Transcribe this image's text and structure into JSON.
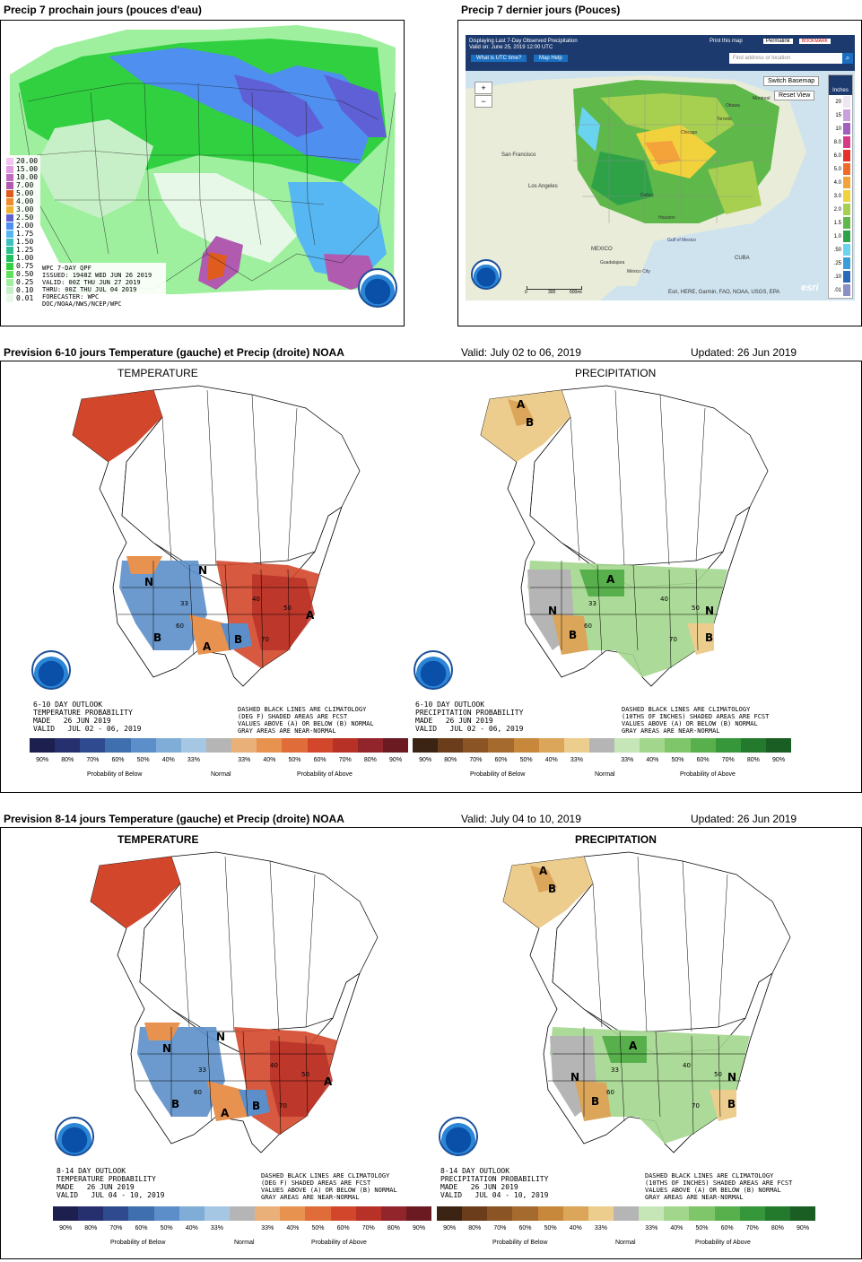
{
  "top_left": {
    "title": "Precip 7 prochain jours (pouces d'eau)",
    "legend": [
      {
        "label": "20.00",
        "color": "#f2c4f2"
      },
      {
        "label": "15.00",
        "color": "#e39be3"
      },
      {
        "label": "10.00",
        "color": "#c06bc0"
      },
      {
        "label": "7.00",
        "color": "#b05ab0"
      },
      {
        "label": "5.00",
        "color": "#e05c1e"
      },
      {
        "label": "4.00",
        "color": "#f08b30"
      },
      {
        "label": "3.00",
        "color": "#f0b030"
      },
      {
        "label": "2.50",
        "color": "#5f5fd6"
      },
      {
        "label": "2.00",
        "color": "#4e8ff0"
      },
      {
        "label": "1.75",
        "color": "#57b7f2"
      },
      {
        "label": "1.50",
        "color": "#3dc0c0"
      },
      {
        "label": "1.25",
        "color": "#2ec090"
      },
      {
        "label": "1.00",
        "color": "#20c060"
      },
      {
        "label": "0.75",
        "color": "#30d040"
      },
      {
        "label": "0.50",
        "color": "#60e060"
      },
      {
        "label": "0.25",
        "color": "#9ef09e"
      },
      {
        "label": "0.10",
        "color": "#c8f0c8"
      },
      {
        "label": "0.01",
        "color": "#e8f8e8"
      }
    ],
    "info": [
      "WPC 7-DAY QPF",
      "ISSUED: 1948Z WED JUN 26 2019",
      "VALID: 00Z THU JUN 27 2019",
      "THRU: 00Z THU JUL 04 2019",
      "FORECASTER: WPC",
      "DOC/NOAA/NWS/NCEP/WPC"
    ]
  },
  "top_right": {
    "title": "Precip 7 dernier jours (Pouces)",
    "header_line1": "Displaying Last 7-Day Observed Precipitation",
    "header_line2": "Valid on: June 25, 2019 12:00 UTC",
    "btn_utc": "What is UTC time?",
    "btn_help": "Map Help",
    "print": "Print this map",
    "permalink": "Permalink",
    "bookmark": "BOOKMARK",
    "search_placeholder": "Find address or location",
    "switch_basemap": "Switch Basemap",
    "reset_view": "Reset View",
    "units": "Inches",
    "scale": [
      "20",
      "15",
      "10",
      "8.0",
      "6.0",
      "5.0",
      "4.0",
      "3.0",
      "2.0",
      "1.5",
      "1.0",
      ".50",
      ".25",
      ".10",
      ".01"
    ],
    "scale_colors": [
      "#ece7f2",
      "#c9a0dc",
      "#a35fc0",
      "#d83a8a",
      "#e8302a",
      "#f06a2a",
      "#f4a23a",
      "#f2d23c",
      "#a8d050",
      "#5fb84a",
      "#2fa248",
      "#6ad3f0",
      "#3a9ed8",
      "#2a6ab8",
      "#8a8fc8"
    ],
    "place_labels": [
      "San Francisco",
      "Los Angeles",
      "MEXICO",
      "Guadalajara",
      "México City",
      "CUBA",
      "Gulf of Mexico",
      "Ottawa",
      "Montreal",
      "Toronto",
      "Chicago",
      "Houston",
      "Dallas"
    ],
    "scale_bar": [
      "0",
      "300",
      "600mi"
    ],
    "attribution": "Esri, HERE, Garmin, FAO, NOAA, USGS, EPA",
    "esri": "esri"
  },
  "row2": {
    "title": "Prevision 6-10 jours Temperature (gauche) et Precip (droite) NOAA",
    "valid": "Valid: July 02 to 06, 2019",
    "updated": "Updated: 26 Jun 2019",
    "temp_label": "TEMPERATURE",
    "precip_label": "PRECIPITATION",
    "temp_text": "6-10 DAY OUTLOOK\nTEMPERATURE PROBABILITY\nMADE   26 JUN 2019\nVALID   JUL 02 - 06, 2019",
    "precip_text": "6-10 DAY OUTLOOK\nPRECIPITATION PROBABILITY\nMADE   26 JUN 2019\nVALID   JUL 02 - 06, 2019",
    "temp_note": "DASHED BLACK LINES ARE CLIMATOLOGY\n(DEG F) SHADED AREAS ARE FCST\nVALUES ABOVE (A) OR BELOW (B) NORMAL\nGRAY AREAS ARE NEAR-NORMAL",
    "precip_note": "DASHED BLACK LINES ARE CLIMATOLOGY\n(10THS OF INCHES) SHADED AREAS ARE FCST\nVALUES ABOVE (A) OR BELOW (B) NORMAL\nGRAY AREAS ARE NEAR-NORMAL"
  },
  "row3": {
    "title": "Prevision 8-14 jours Temperature (gauche) et Precip (droite) NOAA",
    "valid": "Valid: July 04 to 10, 2019",
    "updated": "Updated: 26 Jun 2019",
    "temp_label": "TEMPERATURE",
    "precip_label": "PRECIPITATION",
    "temp_text": "8-14 DAY OUTLOOK\nTEMPERATURE PROBABILITY\nMADE   26 JUN 2019\nVALID   JUL 04 - 10, 2019",
    "precip_text": "8-14 DAY OUTLOOK\nPRECIPITATION PROBABILITY\nMADE   26 JUN 2019\nVALID   JUL 04 - 10, 2019",
    "temp_note": "DASHED BLACK LINES ARE CLIMATOLOGY\n(DEG F) SHADED AREAS ARE FCST\nVALUES ABOVE (A) OR BELOW (B) NORMAL\nGRAY AREAS ARE NEAR-NORMAL",
    "precip_note": "DASHED BLACK LINES ARE CLIMATOLOGY\n(10THS OF INCHES) SHADED AREAS ARE FCST\nVALUES ABOVE (A) OR BELOW (B) NORMAL\nGRAY AREAS ARE NEAR-NORMAL"
  },
  "legend": {
    "pcts": [
      "90%",
      "80%",
      "70%",
      "60%",
      "50%",
      "40%",
      "33%",
      "",
      "33%",
      "40%",
      "50%",
      "60%",
      "70%",
      "80%",
      "90%"
    ],
    "below": "Probability of Below",
    "normal": "Normal",
    "above": "Probability of Above",
    "temp_colors": [
      "#1d1f4e",
      "#27306e",
      "#2f4a8e",
      "#3f6fae",
      "#5c8fc9",
      "#7fadd8",
      "#a6c7e4",
      "#b5b5b5",
      "#e9b07a",
      "#e8924f",
      "#e06c3a",
      "#d2472b",
      "#b83127",
      "#92242b",
      "#6b1a22"
    ],
    "precip_colors": [
      "#3b2414",
      "#6b3d1a",
      "#8a5424",
      "#a56a2e",
      "#c8883c",
      "#dba55a",
      "#eccd8e",
      "#b5b5b5",
      "#c6e6b8",
      "#a3d68d",
      "#7fc66a",
      "#57b04c",
      "#35963a",
      "#237a2c",
      "#1a5e24"
    ]
  },
  "map_labels": {
    "A": "A",
    "B": "B",
    "N": "N",
    "iso": [
      "33",
      "40",
      "50",
      "60",
      "70"
    ]
  }
}
